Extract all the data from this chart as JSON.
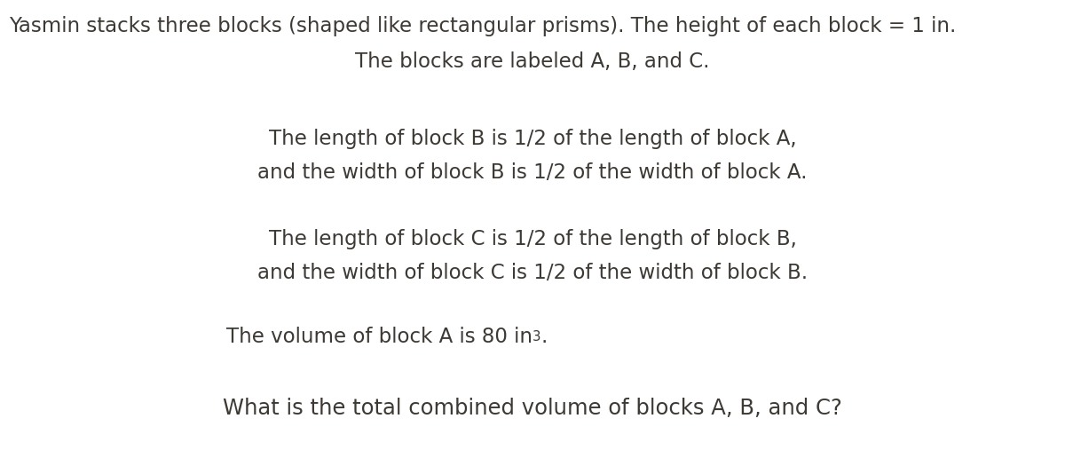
{
  "background_color": "#ffffff",
  "text_color": "#3d3935",
  "font_family": "DejaVu Sans",
  "line1": "Yasmin stacks three blocks (shaped like rectangular prisms). The height of each block = 1 in.",
  "line2": "The blocks are labeled A, B, and C.",
  "line3a": "The length of block B is 1/2 of the length of block A,",
  "line3b": "and the width of block B is 1/2 of the width of block A.",
  "line4a": "The length of block C is 1/2 of the length of block B,",
  "line4b": "and the width of block C is 1/2 of the width of block B.",
  "line5_plain": "The volume of block A is 80 in",
  "line5_super": "3",
  "line5_end": ".",
  "line6": "What is the total combined volume of blocks A, B, and C?",
  "fontsize": 16.5,
  "fig_width": 12.0,
  "fig_height": 5.16,
  "dpi": 100
}
